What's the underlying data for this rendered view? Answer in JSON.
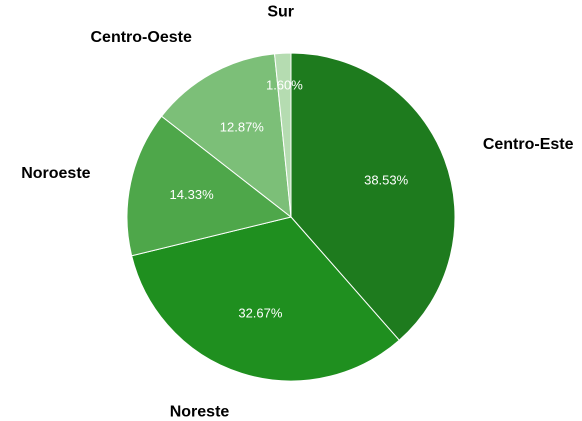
{
  "chart_data": {
    "type": "pie",
    "categories": [
      "Centro-Este",
      "Noreste",
      "Noroeste",
      "Centro-Oeste",
      "Sur"
    ],
    "values": [
      38.53,
      32.67,
      14.33,
      12.87,
      1.6
    ],
    "value_labels": [
      "38.53%",
      "32.67%",
      "14.33%",
      "12.87%",
      "1.60%"
    ],
    "colors": [
      "#1e7b1e",
      "#1f8f1f",
      "#4ea74a",
      "#7cbf78",
      "#b5dcb1"
    ]
  }
}
